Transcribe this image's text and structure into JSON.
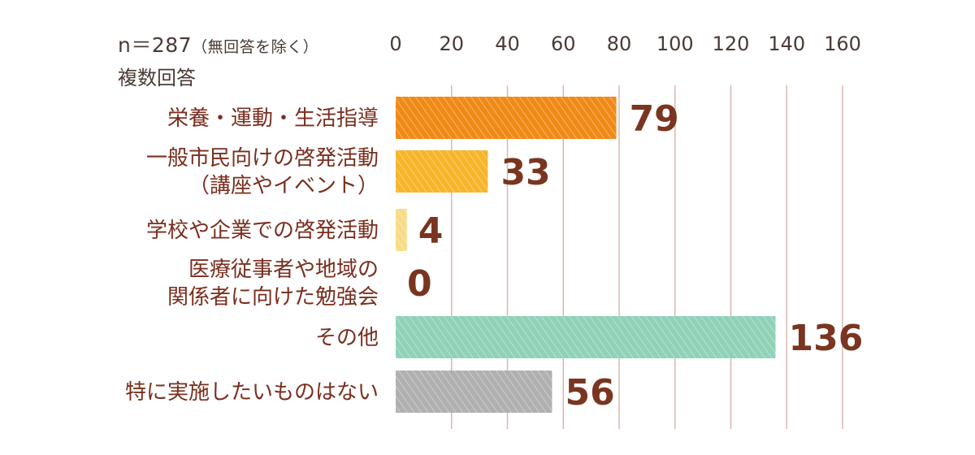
{
  "chart_data": {
    "type": "bar",
    "orientation": "horizontal",
    "note": {
      "sample": "n＝287",
      "exclusion": "（無回答を除く）",
      "multi": "複数回答"
    },
    "xlim": [
      0,
      160
    ],
    "ticks": [
      0,
      20,
      40,
      60,
      80,
      100,
      120,
      140,
      160
    ],
    "grid": true,
    "categories": [
      [
        "栄養・運動・生活指導"
      ],
      [
        "一般市民向けの啓発活動",
        "（講座やイベント）"
      ],
      [
        "学校や企業での啓発活動"
      ],
      [
        "医療従事者や地域の",
        "関係者に向けた勉強会"
      ],
      [
        "その他"
      ],
      [
        "特に実施したいものはない"
      ]
    ],
    "values": [
      79,
      33,
      4,
      0,
      136,
      56
    ],
    "colors": {
      "bars": [
        "#f08a16",
        "#f6b52a",
        "#f7dc85",
        "#f7dc85",
        "#8fd2b8",
        "#b0b0b0"
      ],
      "label_text": "#7a2e1e",
      "value_text": "#7a3520",
      "grid": "#d9b8b0",
      "tick_text": "#4a3a34"
    }
  }
}
